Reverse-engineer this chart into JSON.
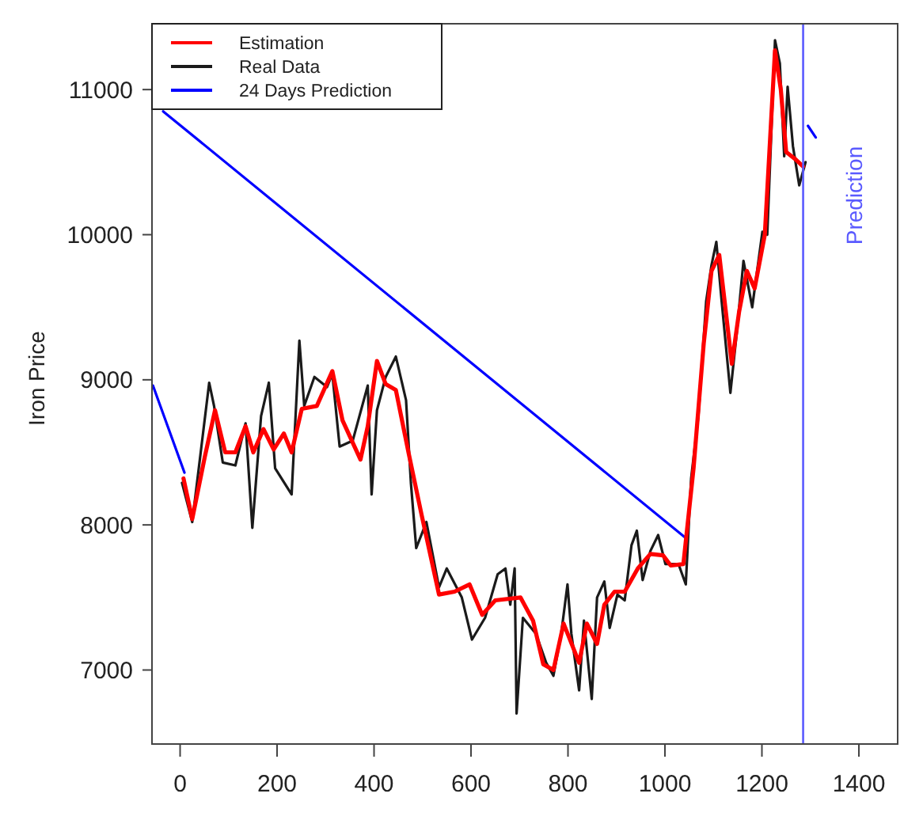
{
  "chart_data": {
    "type": "line",
    "ylabel": "Iron Price",
    "xlim": [
      -58,
      1480
    ],
    "ylim": [
      6490,
      11530
    ],
    "xticks": [
      0,
      200,
      400,
      600,
      800,
      1000,
      1200,
      1400
    ],
    "yticks": [
      7000,
      8000,
      9000,
      10000,
      11000
    ],
    "grid": false,
    "legend": "top left",
    "marker": "none",
    "line_style": "solid",
    "ref_lines": [
      {
        "axis": "x",
        "value": 1285,
        "label": "Prediction",
        "color": "#5a5aff"
      }
    ],
    "series": [
      {
        "name": "Estimation",
        "color": "#ff0000",
        "x": [
          7,
          25,
          51,
          72,
          93,
          114,
          135,
          151,
          172,
          193,
          214,
          230,
          251,
          282,
          314,
          335,
          372,
          387,
          406,
          424,
          445,
          471,
          498,
          534,
          566,
          597,
          623,
          650,
          702,
          728,
          749,
          770,
          791,
          823,
          839,
          860,
          875,
          896,
          917,
          944,
          970,
          996,
          1012,
          1038,
          1059,
          1080,
          1096,
          1112,
          1138,
          1153,
          1169,
          1185,
          1206,
          1227,
          1239,
          1250,
          1269,
          1285
        ],
        "values": [
          8320,
          8040,
          8470,
          8790,
          8500,
          8500,
          8680,
          8500,
          8660,
          8520,
          8630,
          8500,
          8800,
          8820,
          9060,
          8720,
          8450,
          8680,
          9130,
          8970,
          8930,
          8500,
          8070,
          7520,
          7540,
          7590,
          7380,
          7480,
          7500,
          7340,
          7040,
          7000,
          7320,
          7050,
          7320,
          7180,
          7450,
          7540,
          7540,
          7700,
          7800,
          7790,
          7720,
          7730,
          8390,
          9250,
          9750,
          9860,
          9110,
          9470,
          9750,
          9630,
          10000,
          11270,
          11000,
          10570,
          10520,
          10470
        ]
      },
      {
        "name": "Real Data",
        "color": "#1a1a1a",
        "x": [
          4,
          25,
          60,
          70,
          88,
          114,
          135,
          149,
          167,
          183,
          196,
          230,
          246,
          256,
          277,
          303,
          314,
          329,
          356,
          387,
          395,
          406,
          424,
          445,
          466,
          476,
          487,
          508,
          534,
          550,
          581,
          602,
          629,
          655,
          671,
          681,
          690,
          694,
          707,
          734,
          755,
          770,
          786,
          799,
          807,
          823,
          833,
          849,
          860,
          875,
          886,
          902,
          917,
          931,
          942,
          954,
          970,
          986,
          1001,
          1028,
          1043,
          1054,
          1069,
          1085,
          1096,
          1106,
          1117,
          1135,
          1148,
          1162,
          1180,
          1201,
          1211,
          1227,
          1237,
          1246,
          1253,
          1264,
          1277,
          1290
        ],
        "values": [
          8290,
          8020,
          8980,
          8820,
          8430,
          8410,
          8700,
          7980,
          8750,
          8980,
          8390,
          8210,
          9270,
          8820,
          9020,
          8950,
          9040,
          8540,
          8580,
          8960,
          8210,
          8790,
          9020,
          9160,
          8860,
          8290,
          7840,
          8020,
          7570,
          7700,
          7500,
          7210,
          7360,
          7660,
          7700,
          7450,
          7700,
          6700,
          7360,
          7250,
          7050,
          6960,
          7250,
          7590,
          7250,
          6860,
          7340,
          6800,
          7500,
          7610,
          7290,
          7520,
          7480,
          7860,
          7960,
          7620,
          7820,
          7930,
          7730,
          7730,
          7590,
          8320,
          8750,
          9540,
          9790,
          9950,
          9540,
          8910,
          9320,
          9820,
          9500,
          10020,
          10000,
          11340,
          11180,
          10540,
          11020,
          10610,
          10340,
          10500
        ]
      },
      {
        "name": "24 Days Prediction",
        "color": "#0000ff",
        "x": [
          -56,
          9,
          null,
          -35,
          1043,
          null,
          1295,
          1311
        ],
        "values": [
          8960,
          8360,
          null,
          10850,
          7910,
          null,
          10750,
          10670
        ]
      }
    ]
  }
}
